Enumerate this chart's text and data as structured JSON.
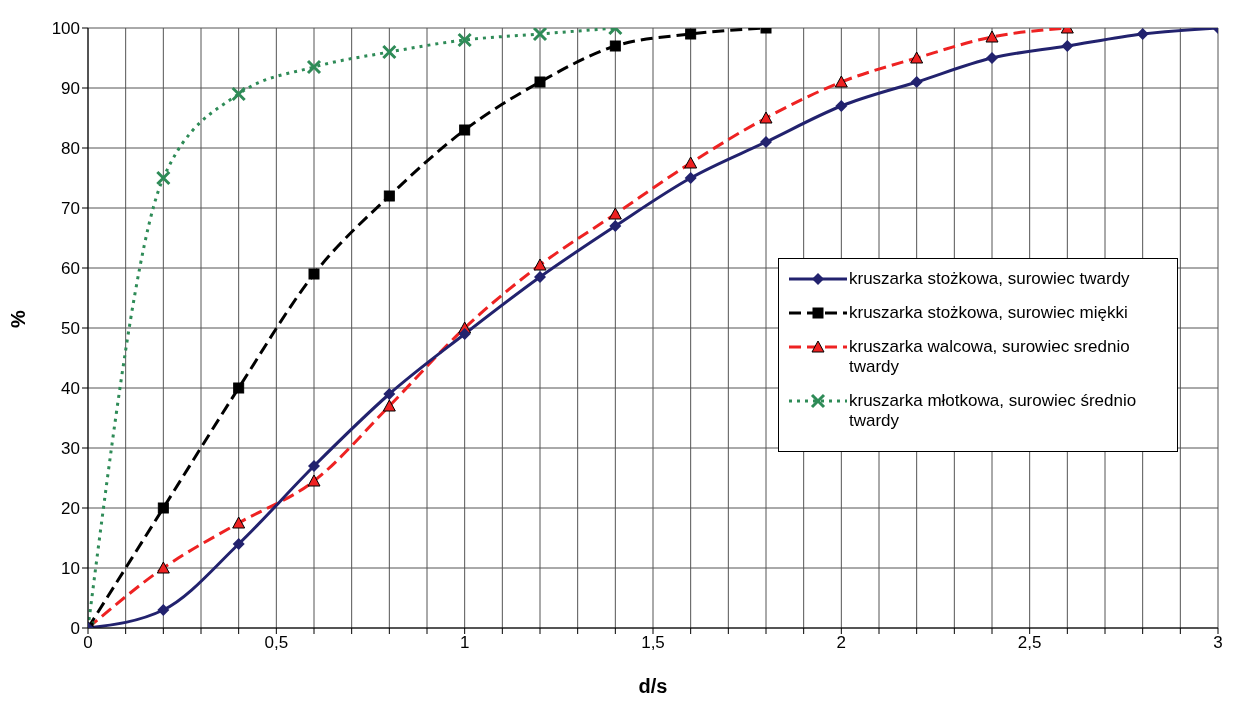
{
  "chart_data": {
    "type": "line",
    "xlabel": "d/s",
    "ylabel": "%",
    "xlim": [
      0,
      3
    ],
    "ylim": [
      0,
      100
    ],
    "xticks": [
      0,
      {
        "value": 0.1,
        "label": null
      },
      {
        "value": 0.2,
        "label": null
      },
      {
        "value": 0.3,
        "label": null
      },
      {
        "value": 0.4,
        "label": null
      },
      {
        "value": 0.5,
        "label": "0,5"
      },
      {
        "value": 0.6,
        "label": null
      },
      {
        "value": 0.7,
        "label": null
      },
      {
        "value": 0.8,
        "label": null
      },
      {
        "value": 0.9,
        "label": null
      },
      1,
      {
        "value": 1.1,
        "label": null
      },
      {
        "value": 1.2,
        "label": null
      },
      {
        "value": 1.3,
        "label": null
      },
      {
        "value": 1.4,
        "label": null
      },
      {
        "value": 1.5,
        "label": "1,5"
      },
      {
        "value": 1.6,
        "label": null
      },
      {
        "value": 1.7,
        "label": null
      },
      {
        "value": 1.8,
        "label": null
      },
      {
        "value": 1.9,
        "label": null
      },
      2,
      {
        "value": 2.1,
        "label": null
      },
      {
        "value": 2.2,
        "label": null
      },
      {
        "value": 2.3,
        "label": null
      },
      {
        "value": 2.4,
        "label": null
      },
      {
        "value": 2.5,
        "label": "2,5"
      },
      {
        "value": 2.6,
        "label": null
      },
      {
        "value": 2.7,
        "label": null
      },
      {
        "value": 2.8,
        "label": null
      },
      {
        "value": 2.9,
        "label": null
      },
      3
    ],
    "yticks": [
      0,
      10,
      20,
      30,
      40,
      50,
      60,
      70,
      80,
      90,
      100
    ],
    "grid": true,
    "legend": "right",
    "series": [
      {
        "name": "kruszarka stożkowa, surowiec twardy",
        "color": "#22226e",
        "marker": "diamond",
        "line_style": "solid",
        "x": [
          0,
          0.2,
          0.4,
          0.6,
          0.8,
          1,
          1.2,
          1.4,
          1.6,
          1.8,
          2,
          2.2,
          2.4,
          2.6,
          2.8,
          3
        ],
        "values": [
          0,
          3,
          14,
          27,
          39,
          49,
          58.5,
          67,
          75,
          81,
          87,
          91,
          95,
          97,
          99,
          100
        ]
      },
      {
        "name": "kruszarka stożkowa, surowiec miękki",
        "color": "#000000",
        "marker": "square",
        "line_style": "dashed",
        "x": [
          0,
          0.2,
          0.4,
          0.6,
          0.8,
          1,
          1.2,
          1.4,
          1.6,
          1.8
        ],
        "values": [
          0,
          20,
          40,
          59,
          72,
          83,
          91,
          97,
          99,
          100
        ]
      },
      {
        "name": "kruszarka walcowa, surowiec srednio twardy",
        "color": "#ee2222",
        "marker": "triangle",
        "line_style": "dashed",
        "x": [
          0,
          0.2,
          0.4,
          0.6,
          0.8,
          1,
          1.2,
          1.4,
          1.6,
          1.8,
          2,
          2.2,
          2.4,
          2.6
        ],
        "values": [
          0,
          10,
          17.5,
          24.5,
          37,
          50,
          60.5,
          69,
          77.5,
          85,
          91,
          95,
          98.5,
          100
        ]
      },
      {
        "name": "kruszarka młotkowa, surowiec średnio twardy",
        "color": "#2e8b57",
        "marker": "cross",
        "line_style": "dotted",
        "x": [
          0,
          0.2,
          0.4,
          0.6,
          0.8,
          1,
          1.2,
          1.4
        ],
        "values": [
          0,
          75,
          89,
          93.5,
          96,
          98,
          99,
          100
        ]
      }
    ]
  }
}
